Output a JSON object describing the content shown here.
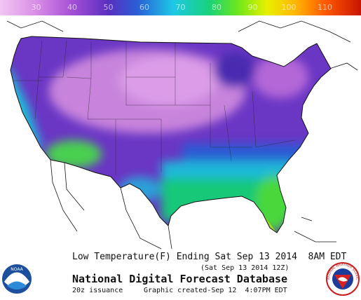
{
  "legend": {
    "ticks": [
      30,
      40,
      50,
      60,
      70,
      80,
      90,
      100,
      110
    ]
  },
  "caption": {
    "line1": "Low Temperature(F) Ending Sat Sep 13 2014  8AM EDT",
    "line2": "(Sat Sep 13 2014 12Z)",
    "title": "National Digital Forecast Database",
    "issuance": "20z issuance",
    "created": "Graphic created-Sep 12  4:07PM EDT"
  },
  "logos": {
    "noaa": "NOAA",
    "nws": "NATIONAL WEATHER SERVICE"
  }
}
